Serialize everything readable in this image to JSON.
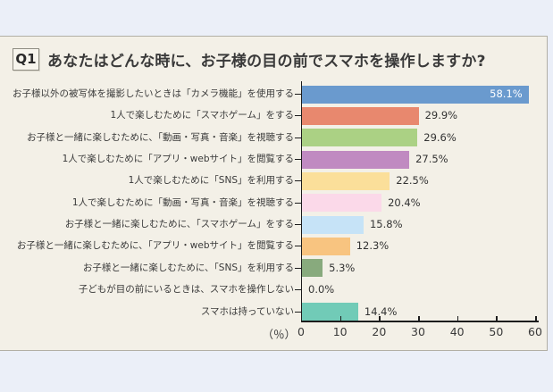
{
  "header": {
    "badge": "Q1",
    "title": "あなたはどんな時に、お子様の目の前でスマホを操作しますか?"
  },
  "chart_data": {
    "type": "bar",
    "orientation": "horizontal",
    "title": "あなたはどんな時に、お子様の目の前でスマホを操作しますか?",
    "unit_label": "（％）",
    "xlim": [
      0,
      60
    ],
    "xticks": [
      0,
      10,
      20,
      30,
      40,
      50,
      60
    ],
    "grid": false,
    "categories": [
      "お子様以外の被写体を撮影したいときは「カメラ機能」を使用する",
      "1人で楽しむために「スマホゲーム」をする",
      "お子様と一緒に楽しむために、「動画・写真・音楽」を視聴する",
      "1人で楽しむために「アプリ・webサイト」を閲覧する",
      "1人で楽しむために「SNS」を利用する",
      "1人で楽しむために「動画・写真・音楽」を視聴する",
      "お子様と一緒に楽しむために、「スマホゲーム」をする",
      "お子様と一緒に楽しむために、「アプリ・webサイト」を閲覧する",
      "お子様と一緒に楽しむために、「SNS」を利用する",
      "子どもが目の前にいるときは、スマホを操作しない",
      "スマホは持っていない"
    ],
    "values": [
      58.1,
      29.9,
      29.6,
      27.5,
      22.5,
      20.4,
      15.8,
      12.3,
      5.3,
      0.0,
      14.4
    ],
    "value_labels": [
      "58.1%",
      "29.9%",
      "29.6%",
      "27.5%",
      "22.5%",
      "20.4%",
      "15.8%",
      "12.3%",
      "5.3%",
      "0.0%",
      "14.4%"
    ],
    "bar_colors": [
      "#6a9ace",
      "#e8886e",
      "#abd184",
      "#c08ac1",
      "#fbdf9a",
      "#fbd9e9",
      "#c6e3f7",
      "#f8c480",
      "#88aa7d",
      null,
      "#71cbb7"
    ],
    "value_label_inside": [
      true,
      false,
      false,
      false,
      false,
      false,
      false,
      false,
      false,
      false,
      false
    ]
  },
  "colors": {
    "page_background": "#ebeff8",
    "panel_background": "#f3f0e7",
    "panel_border": "#b2afa5",
    "axis": "#1c1c1c",
    "text": "#3a3a3a",
    "value_inside_text": "#ffffff"
  }
}
